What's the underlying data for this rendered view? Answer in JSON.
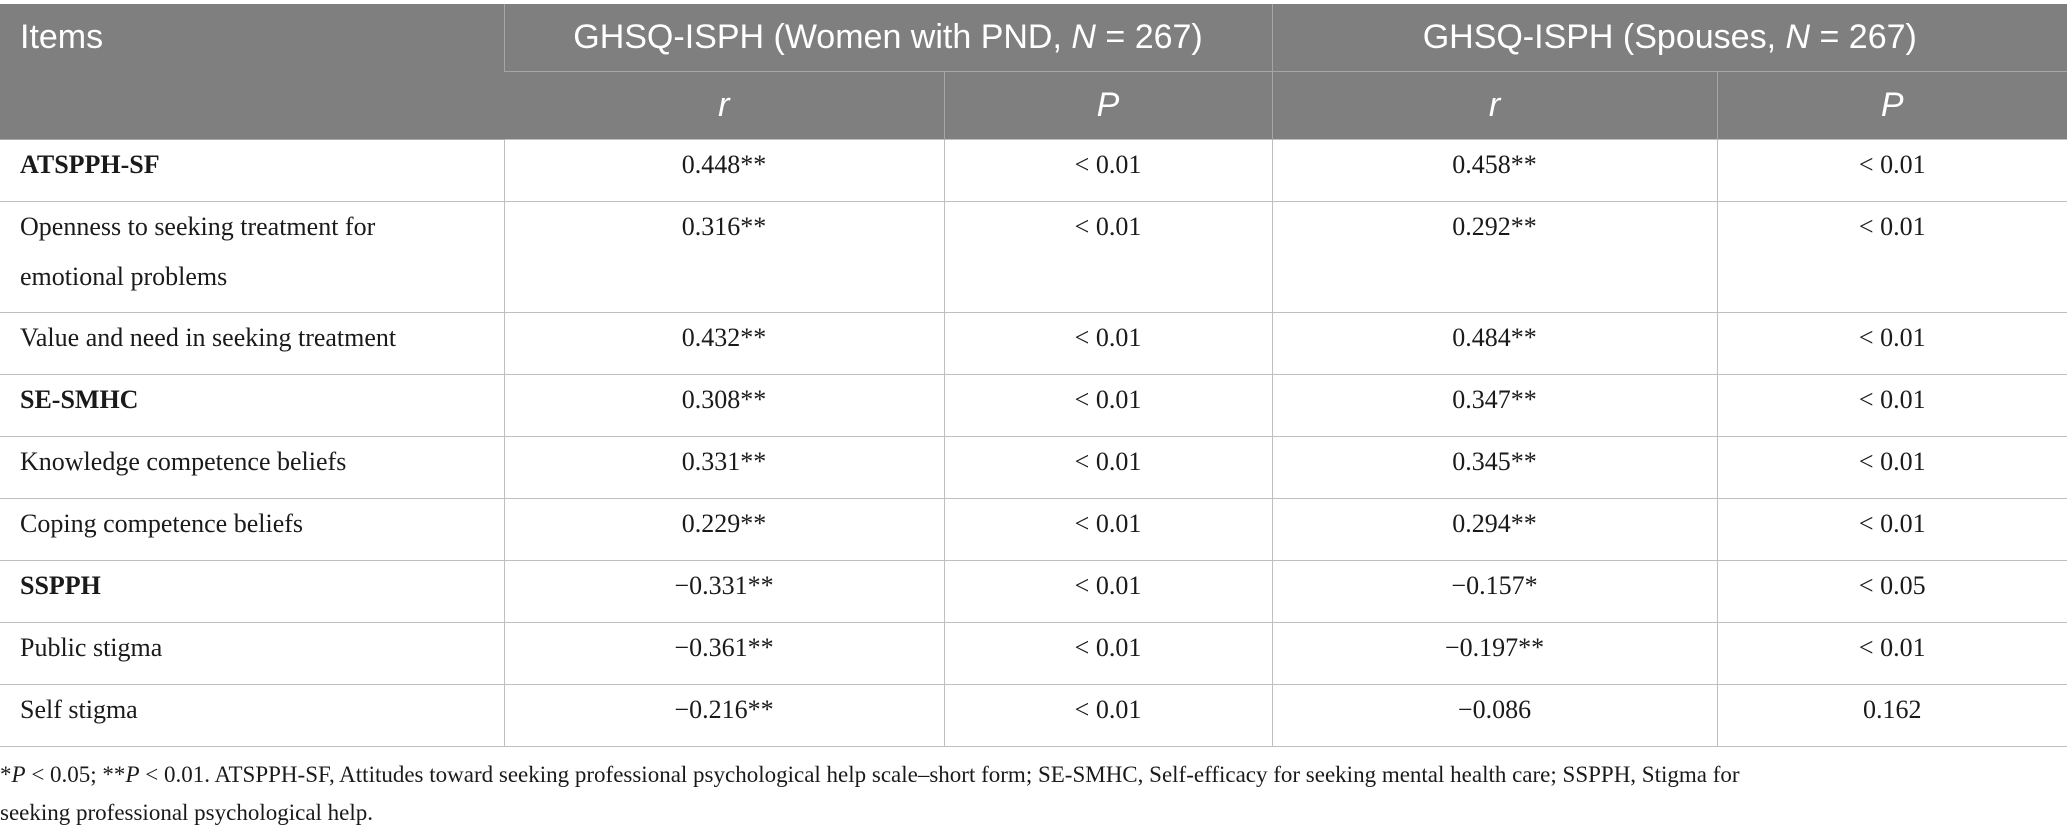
{
  "header": {
    "items": "Items",
    "group_women_prefix": "GHSQ-ISPH (Women with PND, ",
    "group_women_n": "N",
    "group_women_suffix": " = 267)",
    "group_spouses_prefix": "GHSQ-ISPH (Spouses, ",
    "group_spouses_n": "N",
    "group_spouses_suffix": " = 267)",
    "r": "r",
    "p": "P"
  },
  "rows": [
    {
      "name": "ATSPPH-SF",
      "bold": true,
      "wr": "0.448**",
      "wp": "< 0.01",
      "sr": "0.458**",
      "sp": "< 0.01"
    },
    {
      "name1": "Openness to seeking treatment for",
      "name2": "emotional problems",
      "wr": "0.316**",
      "wp": "< 0.01",
      "sr": "0.292**",
      "sp": "< 0.01"
    },
    {
      "name": "Value and need in seeking treatment",
      "wr": "0.432**",
      "wp": "< 0.01",
      "sr": "0.484**",
      "sp": "< 0.01"
    },
    {
      "name": "SE-SMHC",
      "bold": true,
      "wr": "0.308**",
      "wp": "< 0.01",
      "sr": "0.347**",
      "sp": "< 0.01"
    },
    {
      "name": "Knowledge competence beliefs",
      "wr": "0.331**",
      "wp": "< 0.01",
      "sr": "0.345**",
      "sp": "< 0.01"
    },
    {
      "name": "Coping competence beliefs",
      "wr": "0.229**",
      "wp": "< 0.01",
      "sr": "0.294**",
      "sp": "< 0.01"
    },
    {
      "name": "SSPPH",
      "bold": true,
      "wr": "−0.331**",
      "wp": "< 0.01",
      "sr": "−0.157*",
      "sp": "< 0.05"
    },
    {
      "name": "Public stigma",
      "wr": "−0.361**",
      "wp": "< 0.01",
      "sr": "−0.197**",
      "sp": "< 0.01"
    },
    {
      "name": "Self stigma",
      "wr": "−0.216**",
      "wp": "< 0.01",
      "sr": "−0.086",
      "sp": "0.162"
    }
  ],
  "footnote": {
    "a1": "*",
    "a2": "P",
    "a3": " < 0.05; **",
    "a4": "P",
    "a5": " < 0.01. ATSPPH-SF, Attitudes toward seeking professional psychological help scale–short form; SE-SMHC, Self-efficacy for seeking mental health care; SSPPH, Stigma for",
    "line2": "seeking professional psychological help."
  }
}
